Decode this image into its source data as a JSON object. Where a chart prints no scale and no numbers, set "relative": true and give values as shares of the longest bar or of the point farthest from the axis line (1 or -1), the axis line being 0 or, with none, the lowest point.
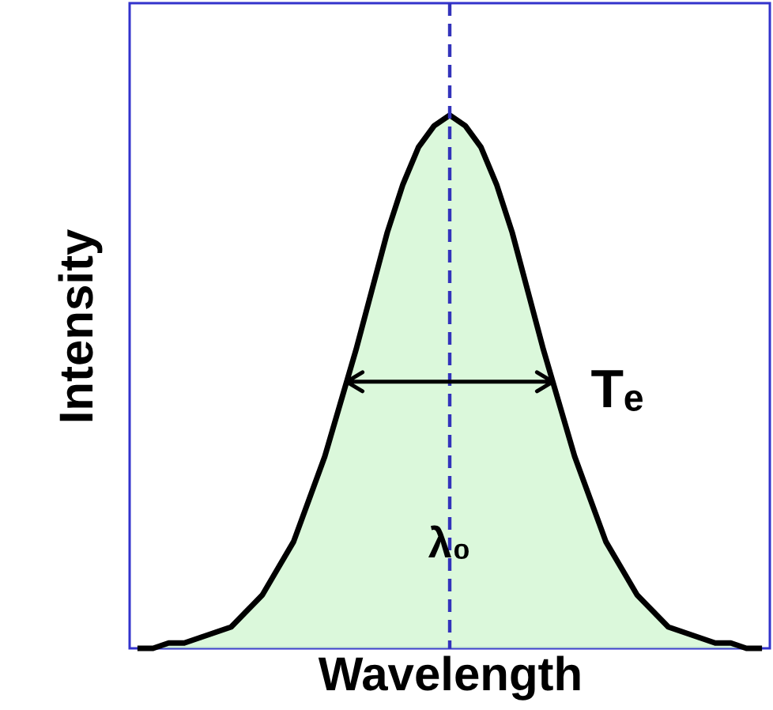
{
  "chart_data": {
    "type": "area",
    "relative": true,
    "xlabel": "Wavelength",
    "ylabel": "Intensity",
    "categories": [
      null,
      null,
      null,
      null,
      null,
      null,
      null,
      null,
      null,
      null,
      null,
      null,
      null,
      null,
      null,
      null,
      null,
      null,
      null,
      null,
      null,
      null,
      null,
      null,
      null,
      null,
      null,
      null,
      null,
      null,
      null,
      null,
      null,
      null,
      null,
      null,
      null,
      null,
      null,
      null,
      null
    ],
    "series": [
      {
        "color": "#ccf5cc",
        "values": [
          0,
          0,
          0.01,
          0.01,
          0.02,
          0.03,
          0.04,
          0.07,
          0.1,
          0.15,
          0.2,
          0.28,
          0.36,
          0.46,
          0.56,
          0.67,
          0.78,
          0.87,
          0.94,
          0.98,
          1,
          0.98,
          0.94,
          0.87,
          0.78,
          0.67,
          0.56,
          0.46,
          0.36,
          0.28,
          0.2,
          0.15,
          0.1,
          0.07,
          0.04,
          0.03,
          0.02,
          0.01,
          0.01,
          0,
          0
        ]
      }
    ],
    "annotations": [
      "λ₀",
      "Tₑ"
    ]
  }
}
